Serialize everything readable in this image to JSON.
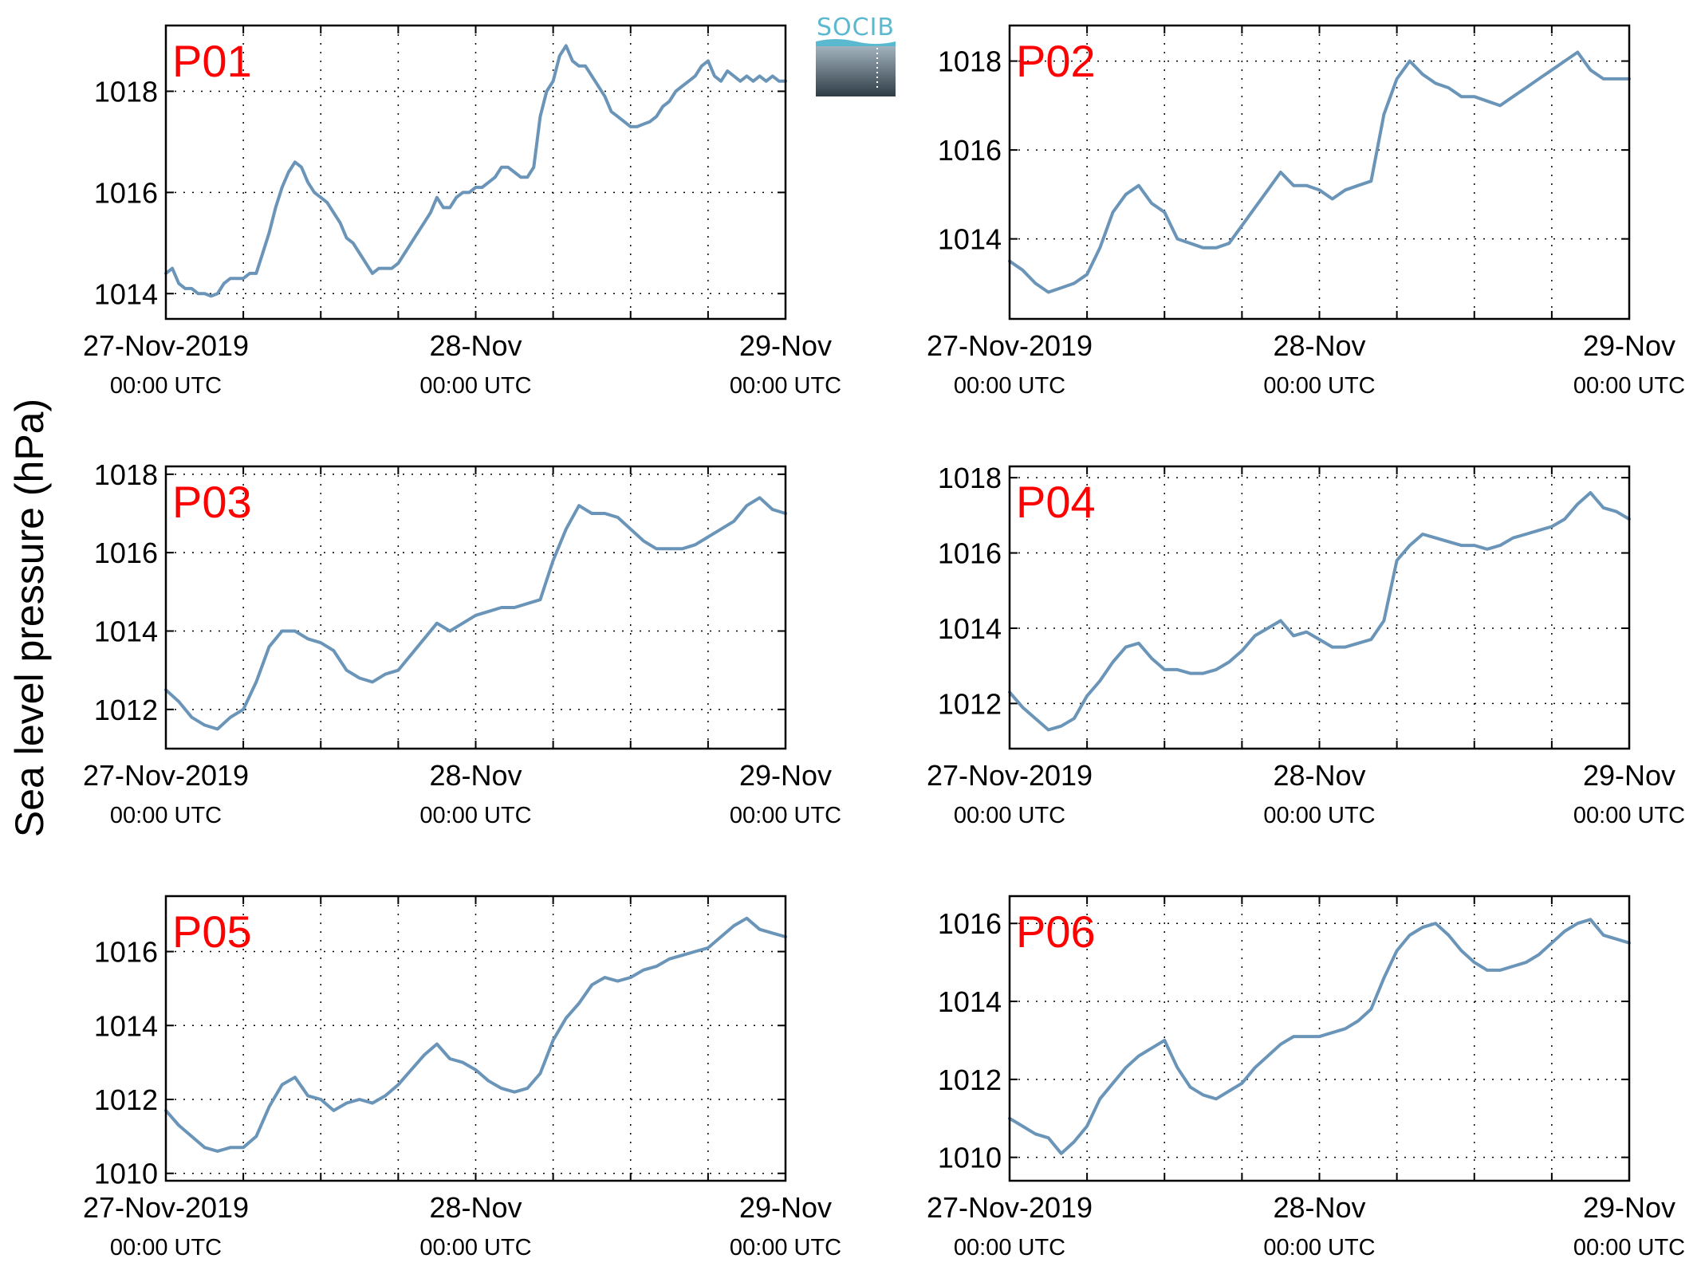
{
  "figure": {
    "ylabel": "Sea level pressure (hPa)",
    "logo": {
      "text": "SOCIB"
    },
    "colors": {
      "line": "#6a95b8",
      "panel_label": "#ff0000",
      "grid": "#000000"
    }
  },
  "chart_data": [
    {
      "type": "line",
      "title": "P01",
      "x_ticks": [
        {
          "label": "27-Nov-2019",
          "sublabel": "00:00 UTC"
        },
        {
          "label": "28-Nov",
          "sublabel": "00:00 UTC"
        },
        {
          "label": "29-Nov",
          "sublabel": "00:00 UTC"
        }
      ],
      "xlim": [
        0,
        48
      ],
      "ylim": [
        1013.5,
        1019.3
      ],
      "y_ticks": [
        1014,
        1016,
        1018
      ],
      "grid": true,
      "series": [
        {
          "x": [
            0,
            0.5,
            1,
            1.5,
            2,
            2.5,
            3,
            3.5,
            4,
            4.5,
            5,
            5.5,
            6,
            6.5,
            7,
            7.5,
            8,
            8.5,
            9,
            9.5,
            10,
            10.5,
            11,
            11.5,
            12,
            12.5,
            13,
            13.5,
            14,
            14.5,
            15,
            15.5,
            16,
            16.5,
            17,
            17.5,
            18,
            18.5,
            19,
            19.5,
            20,
            20.5,
            21,
            21.5,
            22,
            22.5,
            23,
            23.5,
            24,
            24.5,
            25,
            25.5,
            26,
            26.5,
            27,
            27.5,
            28,
            28.5,
            29,
            29.5,
            30,
            30.5,
            31,
            31.5,
            32,
            32.5,
            33,
            33.5,
            34,
            34.5,
            35,
            35.5,
            36,
            36.5,
            37,
            37.5,
            38,
            38.5,
            39,
            39.5,
            40,
            40.5,
            41,
            41.5,
            42,
            42.5,
            43,
            43.5,
            44,
            44.5,
            45,
            45.5,
            46,
            46.5,
            47,
            47.5,
            48
          ],
          "y": [
            1014.4,
            1014.5,
            1014.2,
            1014.1,
            1014.1,
            1014.0,
            1014.0,
            1013.95,
            1014.0,
            1014.2,
            1014.3,
            1014.3,
            1014.3,
            1014.4,
            1014.4,
            1014.8,
            1015.2,
            1015.7,
            1016.1,
            1016.4,
            1016.6,
            1016.5,
            1016.2,
            1016.0,
            1015.9,
            1015.8,
            1015.6,
            1015.4,
            1015.1,
            1015.0,
            1014.8,
            1014.6,
            1014.4,
            1014.5,
            1014.5,
            1014.5,
            1014.6,
            1014.8,
            1015.0,
            1015.2,
            1015.4,
            1015.6,
            1015.9,
            1015.7,
            1015.7,
            1015.9,
            1016.0,
            1016.0,
            1016.1,
            1016.1,
            1016.2,
            1016.3,
            1016.5,
            1016.5,
            1016.4,
            1016.3,
            1016.3,
            1016.5,
            1017.5,
            1018.0,
            1018.2,
            1018.7,
            1018.9,
            1018.6,
            1018.5,
            1018.5,
            1018.3,
            1018.1,
            1017.9,
            1017.6,
            1017.5,
            1017.4,
            1017.3,
            1017.3,
            1017.35,
            1017.4,
            1017.5,
            1017.7,
            1017.8,
            1018.0,
            1018.1,
            1018.2,
            1018.3,
            1018.5,
            1018.6,
            1018.3,
            1018.2,
            1018.4,
            1018.3,
            1018.2,
            1018.3,
            1018.2,
            1018.3,
            1018.2,
            1018.3,
            1018.2,
            1018.2
          ]
        }
      ]
    },
    {
      "type": "line",
      "title": "P02",
      "x_ticks": [
        {
          "label": "27-Nov-2019",
          "sublabel": "00:00 UTC"
        },
        {
          "label": "28-Nov",
          "sublabel": "00:00 UTC"
        },
        {
          "label": "29-Nov",
          "sublabel": "00:00 UTC"
        }
      ],
      "xlim": [
        0,
        48
      ],
      "ylim": [
        1012.2,
        1018.8
      ],
      "y_ticks": [
        1014,
        1016,
        1018
      ],
      "grid": true,
      "series": [
        {
          "x": [
            0,
            1,
            2,
            3,
            4,
            5,
            6,
            7,
            8,
            9,
            10,
            11,
            12,
            13,
            14,
            15,
            16,
            16.5,
            17,
            18,
            19,
            20,
            21,
            22,
            23,
            24,
            25,
            26,
            27,
            28,
            29,
            30,
            31,
            32,
            33,
            34,
            35,
            36,
            37,
            38,
            39,
            40,
            41,
            42,
            43,
            44,
            45,
            46,
            47,
            48
          ],
          "y": [
            1013.5,
            1013.3,
            1013.0,
            1012.8,
            1012.9,
            1013.0,
            1013.2,
            1013.8,
            1014.6,
            1015.0,
            1015.2,
            1014.8,
            1014.6,
            1014.0,
            1013.9,
            1013.8,
            1013.8,
            1013.85,
            1013.9,
            1014.3,
            1014.7,
            1015.1,
            1015.5,
            1015.2,
            1015.2,
            1015.1,
            1014.9,
            1015.1,
            1015.2,
            1015.3,
            1016.8,
            1017.6,
            1018.0,
            1017.7,
            1017.5,
            1017.4,
            1017.2,
            1017.2,
            1017.1,
            1017.0,
            1017.2,
            1017.4,
            1017.6,
            1017.8,
            1018.0,
            1018.2,
            1017.8,
            1017.6,
            1017.6,
            1017.6
          ]
        }
      ]
    },
    {
      "type": "line",
      "title": "P03",
      "x_ticks": [
        {
          "label": "27-Nov-2019",
          "sublabel": "00:00 UTC"
        },
        {
          "label": "28-Nov",
          "sublabel": "00:00 UTC"
        },
        {
          "label": "29-Nov",
          "sublabel": "00:00 UTC"
        }
      ],
      "xlim": [
        0,
        48
      ],
      "ylim": [
        1011.0,
        1018.2
      ],
      "y_ticks": [
        1012,
        1014,
        1016,
        1018
      ],
      "grid": true,
      "series": [
        {
          "x": [
            0,
            1,
            2,
            3,
            4,
            5,
            6,
            7,
            8,
            9,
            10,
            11,
            12,
            13,
            14,
            15,
            16,
            17,
            18,
            19,
            20,
            21,
            22,
            23,
            24,
            25,
            26,
            27,
            28,
            29,
            30,
            31,
            32,
            33,
            34,
            35,
            36,
            37,
            38,
            39,
            40,
            41,
            42,
            43,
            44,
            45,
            46,
            47,
            48
          ],
          "y": [
            1012.5,
            1012.2,
            1011.8,
            1011.6,
            1011.5,
            1011.8,
            1012.0,
            1012.7,
            1013.6,
            1014.0,
            1014.0,
            1013.8,
            1013.7,
            1013.5,
            1013.0,
            1012.8,
            1012.7,
            1012.9,
            1013.0,
            1013.4,
            1013.8,
            1014.2,
            1014.0,
            1014.2,
            1014.4,
            1014.5,
            1014.6,
            1014.6,
            1014.7,
            1014.8,
            1015.8,
            1016.6,
            1017.2,
            1017.0,
            1017.0,
            1016.9,
            1016.6,
            1016.3,
            1016.1,
            1016.1,
            1016.1,
            1016.2,
            1016.4,
            1016.6,
            1016.8,
            1017.2,
            1017.4,
            1017.1,
            1017.0
          ]
        }
      ]
    },
    {
      "type": "line",
      "title": "P04",
      "x_ticks": [
        {
          "label": "27-Nov-2019",
          "sublabel": "00:00 UTC"
        },
        {
          "label": "28-Nov",
          "sublabel": "00:00 UTC"
        },
        {
          "label": "29-Nov",
          "sublabel": "00:00 UTC"
        }
      ],
      "xlim": [
        0,
        48
      ],
      "ylim": [
        1010.8,
        1018.3
      ],
      "y_ticks": [
        1012,
        1014,
        1016,
        1018
      ],
      "grid": true,
      "series": [
        {
          "x": [
            0,
            1,
            2,
            3,
            4,
            5,
            6,
            7,
            8,
            9,
            10,
            11,
            12,
            13,
            14,
            15,
            16,
            17,
            18,
            19,
            20,
            21,
            22,
            23,
            24,
            25,
            26,
            27,
            28,
            29,
            30,
            31,
            32,
            33,
            34,
            35,
            36,
            37,
            38,
            39,
            40,
            41,
            42,
            43,
            44,
            45,
            46,
            47,
            48
          ],
          "y": [
            1012.3,
            1011.9,
            1011.6,
            1011.3,
            1011.4,
            1011.6,
            1012.2,
            1012.6,
            1013.1,
            1013.5,
            1013.6,
            1013.2,
            1012.9,
            1012.9,
            1012.8,
            1012.8,
            1012.9,
            1013.1,
            1013.4,
            1013.8,
            1014.0,
            1014.2,
            1013.8,
            1013.9,
            1013.7,
            1013.5,
            1013.5,
            1013.6,
            1013.7,
            1014.2,
            1015.8,
            1016.2,
            1016.5,
            1016.4,
            1016.3,
            1016.2,
            1016.2,
            1016.1,
            1016.2,
            1016.4,
            1016.5,
            1016.6,
            1016.7,
            1016.9,
            1017.3,
            1017.6,
            1017.2,
            1017.1,
            1016.9
          ]
        }
      ]
    },
    {
      "type": "line",
      "title": "P05",
      "x_ticks": [
        {
          "label": "27-Nov-2019",
          "sublabel": "00:00 UTC"
        },
        {
          "label": "28-Nov",
          "sublabel": "00:00 UTC"
        },
        {
          "label": "29-Nov",
          "sublabel": "00:00 UTC"
        }
      ],
      "xlim": [
        0,
        48
      ],
      "ylim": [
        1009.8,
        1017.5
      ],
      "y_ticks": [
        1010,
        1012,
        1014,
        1016
      ],
      "grid": true,
      "series": [
        {
          "x": [
            0,
            1,
            2,
            3,
            4,
            5,
            6,
            7,
            8,
            9,
            10,
            11,
            12,
            13,
            14,
            15,
            16,
            17,
            18,
            19,
            20,
            21,
            22,
            23,
            24,
            25,
            26,
            27,
            28,
            29,
            30,
            31,
            32,
            33,
            34,
            35,
            36,
            37,
            38,
            39,
            40,
            41,
            42,
            43,
            44,
            45,
            46,
            47,
            48
          ],
          "y": [
            1011.7,
            1011.3,
            1011.0,
            1010.7,
            1010.6,
            1010.7,
            1010.7,
            1011.0,
            1011.8,
            1012.4,
            1012.6,
            1012.1,
            1012.0,
            1011.7,
            1011.9,
            1012.0,
            1011.9,
            1012.1,
            1012.4,
            1012.8,
            1013.2,
            1013.5,
            1013.1,
            1013.0,
            1012.8,
            1012.5,
            1012.3,
            1012.2,
            1012.3,
            1012.7,
            1013.6,
            1014.2,
            1014.6,
            1015.1,
            1015.3,
            1015.2,
            1015.3,
            1015.5,
            1015.6,
            1015.8,
            1015.9,
            1016.0,
            1016.1,
            1016.4,
            1016.7,
            1016.9,
            1016.6,
            1016.5,
            1016.4
          ]
        }
      ]
    },
    {
      "type": "line",
      "title": "P06",
      "x_ticks": [
        {
          "label": "27-Nov-2019",
          "sublabel": "00:00 UTC"
        },
        {
          "label": "28-Nov",
          "sublabel": "00:00 UTC"
        },
        {
          "label": "29-Nov",
          "sublabel": "00:00 UTC"
        }
      ],
      "xlim": [
        0,
        48
      ],
      "ylim": [
        1009.4,
        1016.7
      ],
      "y_ticks": [
        1010,
        1012,
        1014,
        1016
      ],
      "grid": true,
      "series": [
        {
          "x": [
            0,
            1,
            2,
            3,
            4,
            5,
            6,
            7,
            8,
            9,
            10,
            11,
            12,
            13,
            14,
            15,
            16,
            17,
            18,
            19,
            20,
            21,
            22,
            23,
            24,
            25,
            26,
            27,
            28,
            29,
            30,
            31,
            32,
            33,
            34,
            35,
            36,
            37,
            38,
            39,
            40,
            41,
            42,
            43,
            44,
            45,
            46,
            47,
            48
          ],
          "y": [
            1011.0,
            1010.8,
            1010.6,
            1010.5,
            1010.1,
            1010.4,
            1010.8,
            1011.5,
            1011.9,
            1012.3,
            1012.6,
            1012.8,
            1013.0,
            1012.3,
            1011.8,
            1011.6,
            1011.5,
            1011.7,
            1011.9,
            1012.3,
            1012.6,
            1012.9,
            1013.1,
            1013.1,
            1013.1,
            1013.2,
            1013.3,
            1013.5,
            1013.8,
            1014.6,
            1015.3,
            1015.7,
            1015.9,
            1016.0,
            1015.7,
            1015.3,
            1015.0,
            1014.8,
            1014.8,
            1014.9,
            1015.0,
            1015.2,
            1015.5,
            1015.8,
            1016.0,
            1016.1,
            1015.7,
            1015.6,
            1015.5
          ]
        }
      ]
    }
  ]
}
